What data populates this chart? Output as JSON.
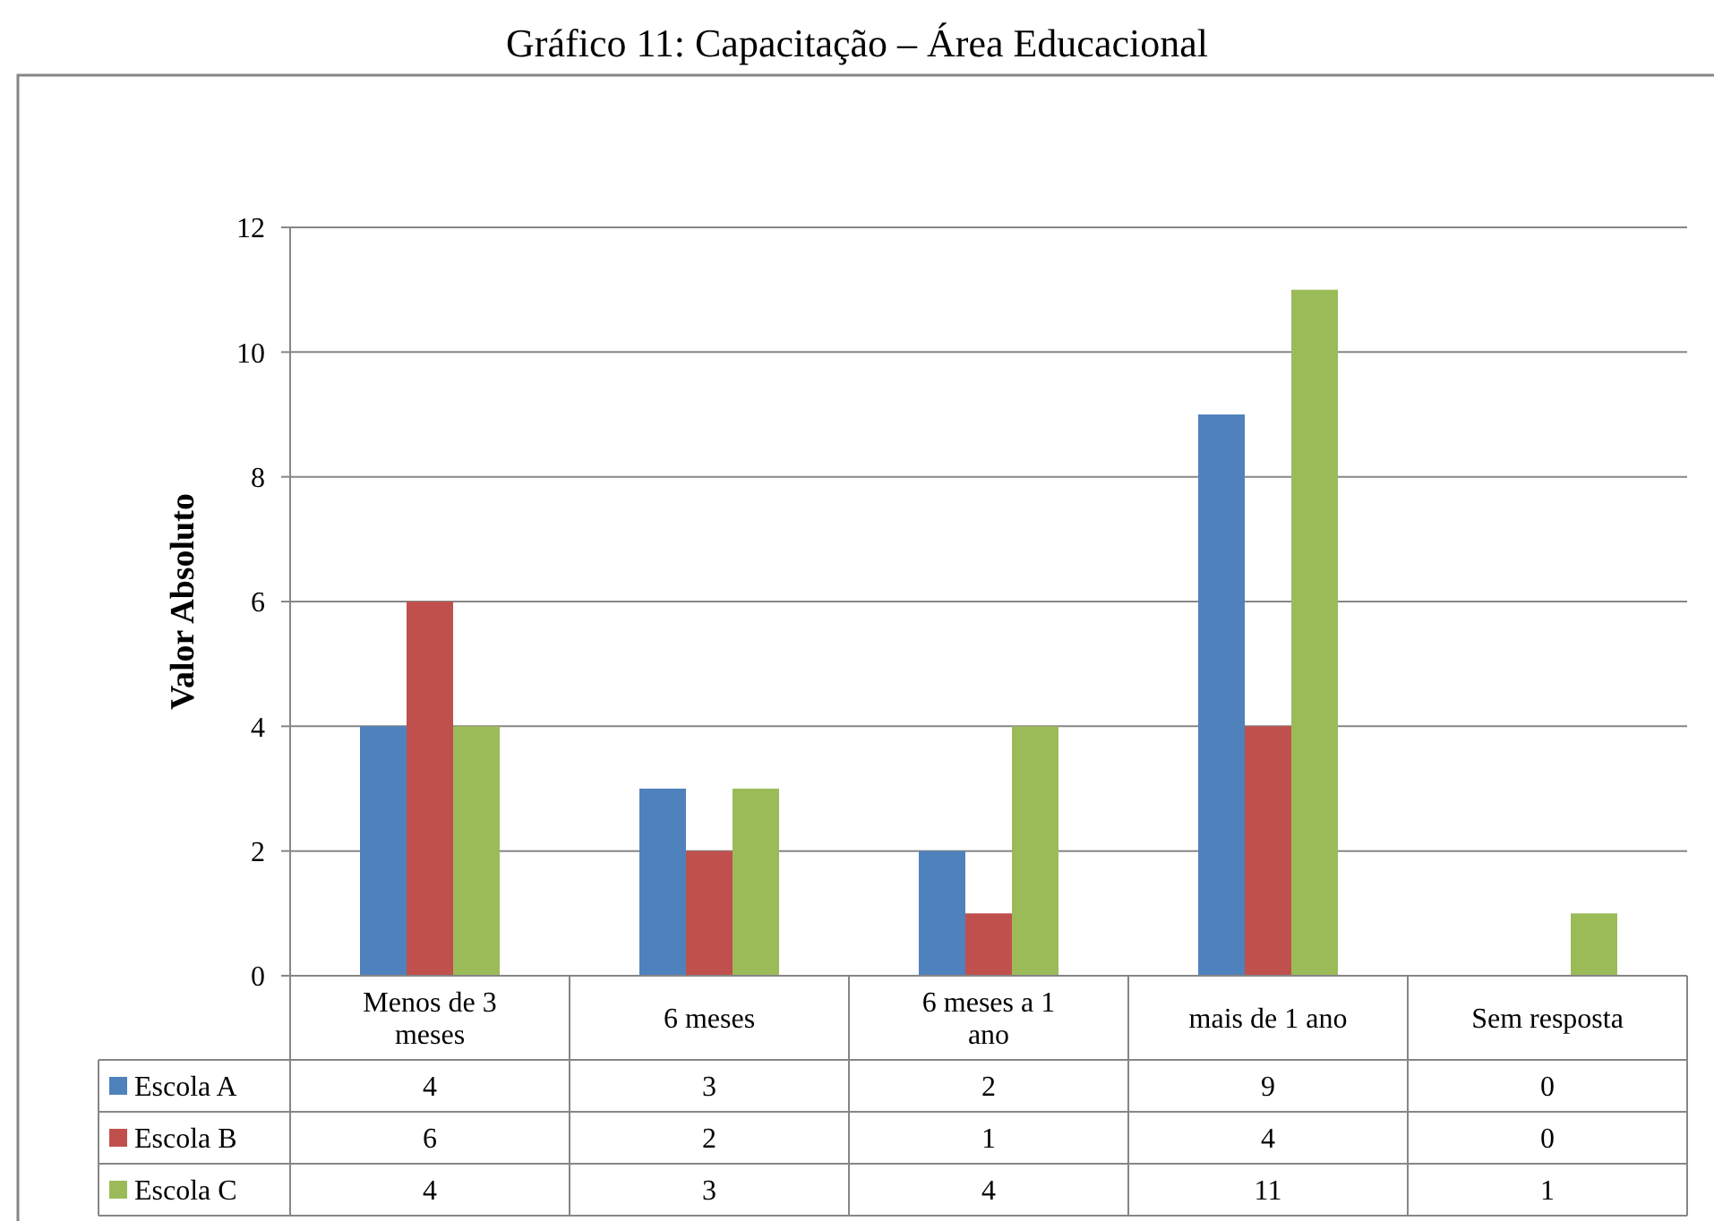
{
  "chart_data": {
    "type": "bar",
    "title": "Gráfico 11: Capacitação – Área Educacional",
    "ylabel": "Valor Absoluto",
    "categories": [
      "Menos de 3 meses",
      "6 meses",
      "6 meses a 1 ano",
      "mais de 1 ano",
      "Sem resposta"
    ],
    "series": [
      {
        "name": "Escola A",
        "color": "#4f81bd",
        "values": [
          4,
          3,
          2,
          9,
          0
        ]
      },
      {
        "name": "Escola B",
        "color": "#c0504d",
        "values": [
          6,
          2,
          1,
          4,
          0
        ]
      },
      {
        "name": "Escola C",
        "color": "#9bbb59",
        "values": [
          4,
          3,
          4,
          11,
          1
        ]
      }
    ],
    "ylim": [
      0,
      12
    ],
    "yticks": [
      0,
      2,
      4,
      6,
      8,
      10,
      12
    ],
    "grid": "y",
    "legend": "bottom",
    "data_labels": true
  }
}
